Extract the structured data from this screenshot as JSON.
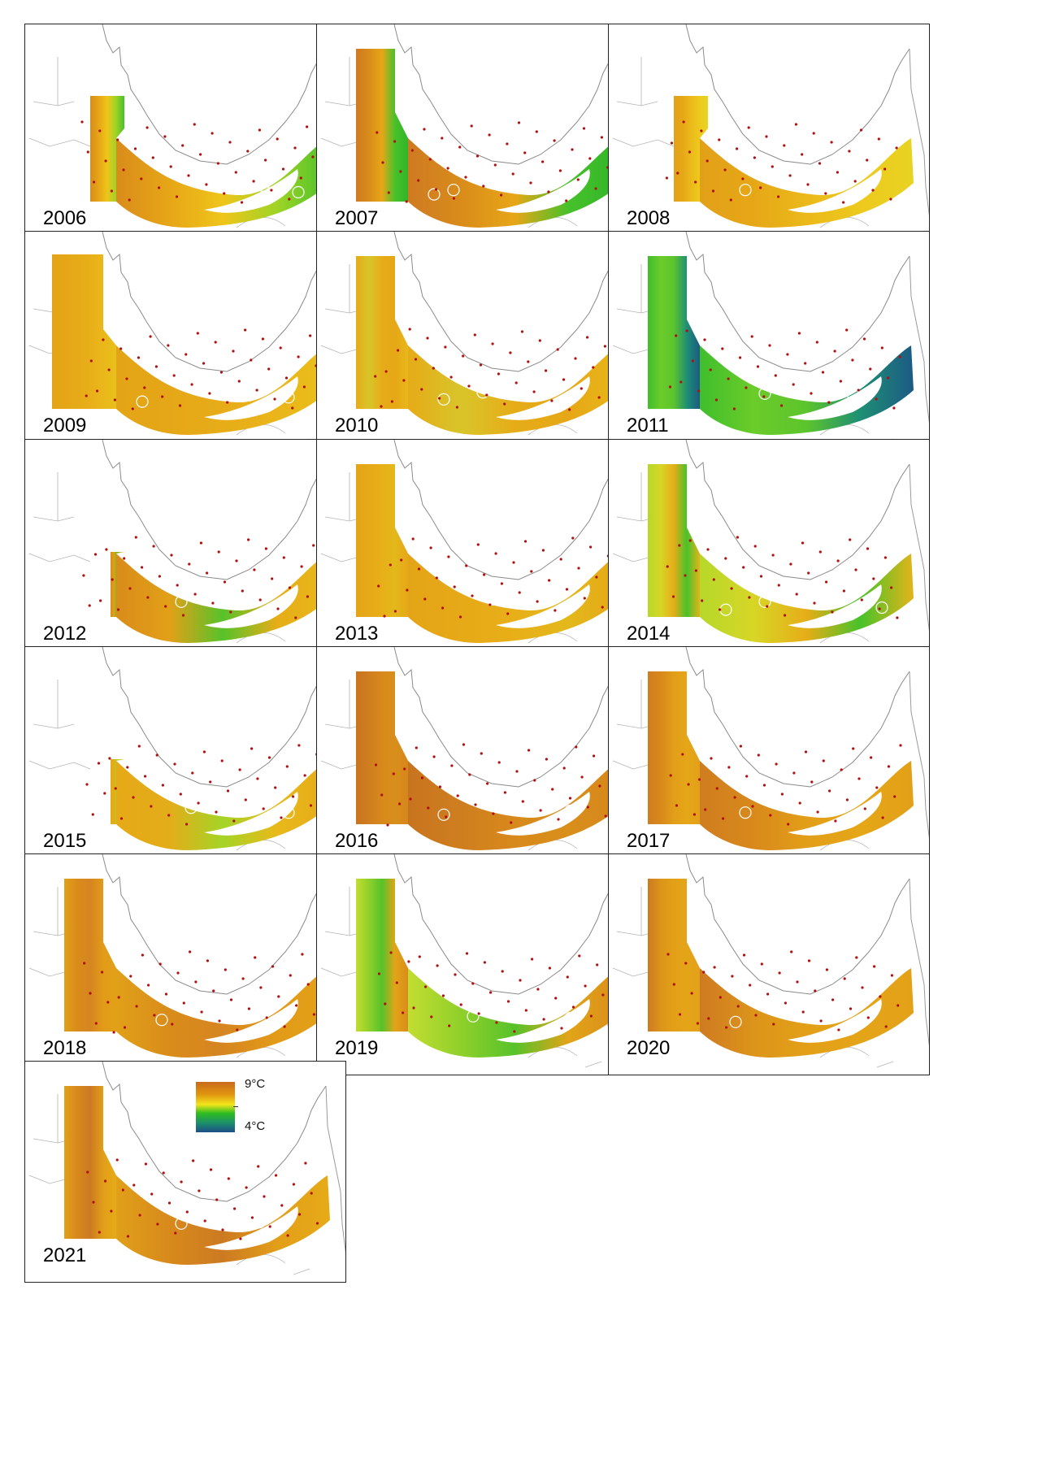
{
  "panels": [
    {
      "year": "2006",
      "style": "w",
      "colors": [
        "#d98c1a",
        "#e7a617",
        "#efc51a",
        "#9fd426",
        "#48c02a"
      ],
      "spots": [
        0.55,
        0.72,
        0.9
      ]
    },
    {
      "year": "2007",
      "style": "n",
      "colors": [
        "#cf7a22",
        "#d98c1a",
        "#e7a617",
        "#47c12a",
        "#31b52a"
      ],
      "spots": [
        0.1,
        0.2,
        0.55
      ]
    },
    {
      "year": "2008",
      "style": "w",
      "colors": [
        "#e2a018",
        "#e6a717",
        "#ebb91a",
        "#edc91d",
        "#e8d322"
      ],
      "spots": [
        0.2,
        0.62
      ]
    },
    {
      "year": "2009",
      "style": "v",
      "colors": [
        "#e3a517",
        "#e5a717",
        "#e7ac18",
        "#eab51a",
        "#e8c01b"
      ],
      "spots": [
        0.1,
        0.85
      ]
    },
    {
      "year": "2010",
      "style": "n",
      "colors": [
        "#e6ab18",
        "#d8c52a",
        "#e6ac18",
        "#e6a716",
        "#e8b81a"
      ],
      "spots": [
        0.15,
        0.35,
        0.65
      ]
    },
    {
      "year": "2011",
      "style": "n",
      "colors": [
        "#3fbe2c",
        "#6bcc2a",
        "#5cc42c",
        "#1e8f74",
        "#1c5a84"
      ],
      "spots": [
        0.3,
        0.5,
        0.75
      ]
    },
    {
      "year": "2012",
      "style": "e",
      "colors": [
        "#d98c1a",
        "#e2a018",
        "#57c22a",
        "#e6ad18",
        "#e8b81a"
      ],
      "spots": [
        0.3,
        0.55
      ]
    },
    {
      "year": "2013",
      "style": "n",
      "colors": [
        "#e4a417",
        "#e6a917",
        "#e8af18",
        "#e3b81b",
        "#e6a717"
      ],
      "spots": [
        0.4
      ]
    },
    {
      "year": "2014",
      "style": "n",
      "colors": [
        "#b6d82a",
        "#d7d626",
        "#e6ad18",
        "#48c22a",
        "#e2b41a"
      ],
      "spots": [
        0.1,
        0.3,
        0.62,
        0.9
      ]
    },
    {
      "year": "2015",
      "style": "e",
      "colors": [
        "#e6a917",
        "#e3ad19",
        "#a5d427",
        "#e8b91a",
        "#e6ab18"
      ],
      "spots": [
        0.35,
        0.5,
        0.85
      ]
    },
    {
      "year": "2016",
      "style": "n",
      "colors": [
        "#c8741f",
        "#cf7e1f",
        "#d8891b",
        "#d98f1b",
        "#d6861c"
      ],
      "spots": [
        0.15,
        0.45,
        0.8
      ]
    },
    {
      "year": "2017",
      "style": "n",
      "colors": [
        "#cf7d1f",
        "#d8891b",
        "#e29e18",
        "#e5a617",
        "#e2a018"
      ],
      "spots": [
        0.2,
        0.5
      ]
    },
    {
      "year": "2018",
      "style": "n",
      "colors": [
        "#e0a019",
        "#d98c1a",
        "#d68520",
        "#e29b18",
        "#e3a117"
      ],
      "spots": [
        0.2,
        0.6
      ]
    },
    {
      "year": "2019",
      "style": "n",
      "colors": [
        "#c3dd31",
        "#8fd02a",
        "#57c22a",
        "#e2a418",
        "#d98c1a"
      ],
      "spots": [
        0.3,
        0.55,
        0.8
      ]
    },
    {
      "year": "2020",
      "style": "n",
      "colors": [
        "#cf7a22",
        "#dc941a",
        "#e3a017",
        "#e4a418",
        "#e3a117"
      ],
      "spots": [
        0.15,
        0.5
      ]
    },
    {
      "year": "2021",
      "style": "n",
      "colors": [
        "#e0a019",
        "#d8891b",
        "#cc7a22",
        "#e29e18",
        "#e6ab18"
      ],
      "spots": [
        0.3,
        0.7
      ]
    }
  ],
  "legend": {
    "high": "9°C",
    "low": "4°C",
    "colors": [
      "#c96a1c",
      "#e0960f",
      "#f2e51a",
      "#2fbd1f",
      "#1b8e6c",
      "#1d4d86"
    ]
  }
}
